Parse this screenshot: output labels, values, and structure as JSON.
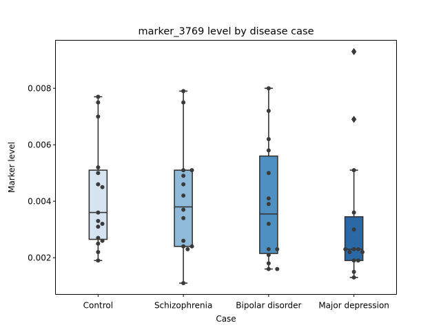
{
  "chart_data": {
    "type": "box",
    "title": "marker_3769 level by disease case",
    "xlabel": "Case",
    "ylabel": "Marker level",
    "categories": [
      "Control",
      "Schizophrenia",
      "Bipolar disorder",
      "Major depression"
    ],
    "ylim": [
      0.0007,
      0.0097
    ],
    "yticks": [
      0.002,
      0.004,
      0.006,
      0.008
    ],
    "ytick_labels": [
      "0.002",
      "0.004",
      "0.006",
      "0.008"
    ],
    "grid": false,
    "legend": "none",
    "colors": [
      "#d6e4f2",
      "#8fbad9",
      "#4f90c2",
      "#2a68a6"
    ],
    "line_color": "#333333",
    "boxes": [
      {
        "category": "Control",
        "whisker_low": 0.0019,
        "q1": 0.00265,
        "median": 0.0036,
        "q3": 0.0051,
        "whisker_high": 0.0077,
        "outliers": []
      },
      {
        "category": "Schizophrenia",
        "whisker_low": 0.0011,
        "q1": 0.0024,
        "median": 0.0038,
        "q3": 0.0051,
        "whisker_high": 0.0079,
        "outliers": []
      },
      {
        "category": "Bipolar disorder",
        "whisker_low": 0.0016,
        "q1": 0.00215,
        "median": 0.00355,
        "q3": 0.0056,
        "whisker_high": 0.008,
        "outliers": []
      },
      {
        "category": "Major depression",
        "whisker_low": 0.0013,
        "q1": 0.0019,
        "median": 0.0023,
        "q3": 0.00345,
        "whisker_high": 0.0051,
        "outliers": [
          0.0069,
          0.0093
        ]
      }
    ],
    "points": [
      {
        "category": "Control",
        "values": [
          0.0077,
          0.0075,
          0.007,
          0.0052,
          0.005,
          0.0046,
          0.0045,
          0.0036,
          0.0033,
          0.0032,
          0.0031,
          0.0027,
          0.0026,
          0.0025,
          0.0022,
          0.0019
        ]
      },
      {
        "category": "Schizophrenia",
        "values": [
          0.0079,
          0.0075,
          0.0051,
          0.0051,
          0.0049,
          0.0046,
          0.0042,
          0.0037,
          0.0034,
          0.0026,
          0.0024,
          0.0024,
          0.0023,
          0.0011
        ]
      },
      {
        "category": "Bipolar disorder",
        "values": [
          0.008,
          0.0072,
          0.0062,
          0.0058,
          0.005,
          0.0041,
          0.0039,
          0.0032,
          0.0023,
          0.0023,
          0.0021,
          0.0018,
          0.0016,
          0.0016
        ]
      },
      {
        "category": "Major depression",
        "values": [
          0.0093,
          0.0069,
          0.0051,
          0.0036,
          0.003,
          0.0023,
          0.0023,
          0.0023,
          0.0022,
          0.0022,
          0.0019,
          0.0019,
          0.0015,
          0.0013
        ]
      }
    ]
  }
}
